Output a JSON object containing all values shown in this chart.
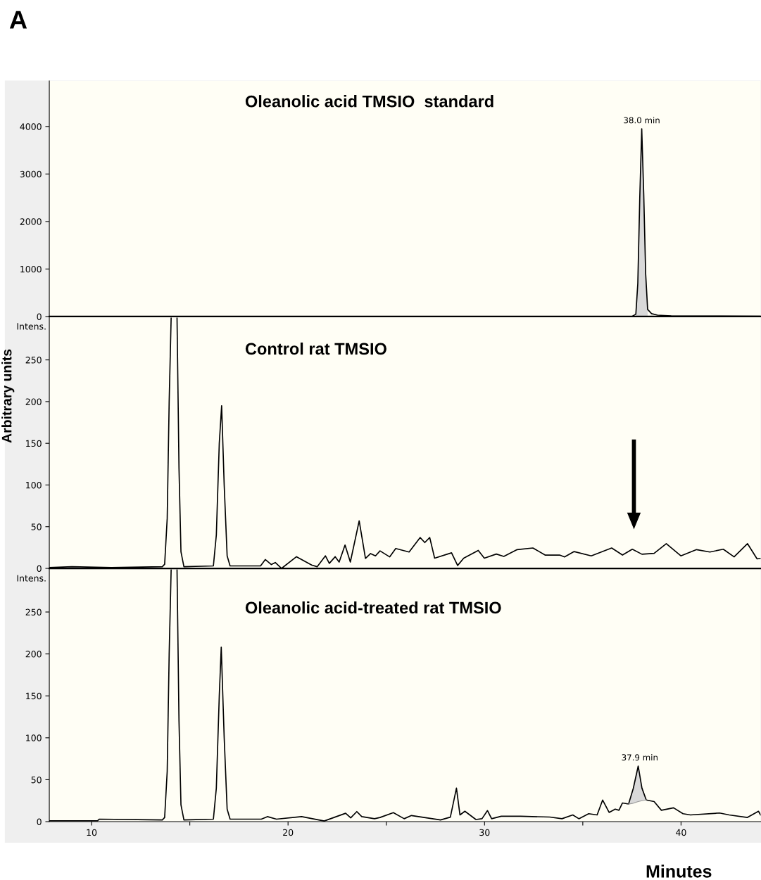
{
  "chart_data": [
    {
      "type": "line",
      "title": "Oleanolic acid TMSIO  standard",
      "annotations": [
        "A",
        {
          "text": "38.0 min",
          "x": 38.0,
          "y": 3950
        }
      ],
      "xlim": [
        7.85,
        44.05
      ],
      "ylim": [
        0,
        4960
      ],
      "yticks": [
        0,
        1000,
        2000,
        3000,
        4000
      ],
      "xticks": [
        10,
        20,
        30,
        40
      ],
      "tick_labels": "y",
      "grid": false,
      "legend": false,
      "series": [
        {
          "color": "#000000",
          "x": [
            7.85,
            20,
            37.5,
            37.7,
            37.8,
            37.9,
            38.0,
            38.1,
            38.2,
            38.3,
            38.5,
            38.8,
            39.5,
            41.0,
            42.0,
            44.05
          ],
          "values": [
            0,
            0,
            0,
            50,
            700,
            2500,
            3950,
            2600,
            900,
            150,
            60,
            30,
            15,
            10,
            10,
            5
          ]
        },
        {
          "type": "area",
          "color": "#d9d9d9",
          "x": [
            37.7,
            37.8,
            37.9,
            38.0,
            38.1,
            38.2,
            38.3
          ],
          "values": [
            50,
            700,
            2500,
            3950,
            2600,
            900,
            150
          ]
        }
      ]
    },
    {
      "type": "line",
      "title": "Control rat TMSIO",
      "ylabel": "Intens.",
      "annotations": [
        "Arbitrary units"
      ],
      "xlim": [
        7.85,
        44.05
      ],
      "ylim": [
        0,
        302
      ],
      "yticks": [
        0,
        50,
        100,
        150,
        200,
        250
      ],
      "xticks": [
        10,
        20,
        30,
        40
      ],
      "tick_labels": "y",
      "grid": false,
      "legend": false,
      "series": [
        {
          "color": "#000000",
          "x": [
            7.85,
            9.0,
            11.0,
            13.6,
            13.72,
            13.85,
            13.95,
            14.05,
            14.2,
            14.35,
            14.45,
            14.55,
            14.7,
            16.2,
            16.35,
            16.5,
            16.62,
            16.75,
            16.9,
            17.05,
            18.6,
            18.84,
            19.15,
            19.35,
            19.67,
            20.43,
            21.2,
            21.48,
            21.9,
            22.1,
            22.4,
            22.6,
            22.9,
            23.17,
            23.62,
            23.94,
            24.2,
            24.45,
            24.68,
            25.17,
            25.48,
            26.16,
            26.72,
            26.96,
            27.21,
            27.46,
            28.32,
            28.63,
            28.94,
            29.68,
            29.99,
            30.6,
            30.98,
            31.66,
            32.46,
            33.08,
            33.82,
            34.07,
            34.56,
            35.43,
            36.47,
            37.02,
            37.52,
            38.01,
            38.63,
            39.25,
            39.99,
            40.79,
            41.47,
            42.15,
            42.7,
            43.38,
            43.87,
            44.05
          ],
          "values": [
            1,
            2,
            1,
            2,
            5,
            60,
            200,
            300,
            null,
            300,
            120,
            20,
            2,
            3,
            40,
            150,
            195,
            100,
            15,
            3,
            3,
            10.6,
            4.6,
            7,
            0,
            14,
            4,
            2,
            15,
            6,
            14,
            7.6,
            28,
            7.6,
            57,
            12,
            17.8,
            15,
            21,
            13.8,
            23.9,
            19.6,
            37,
            31,
            37,
            12.3,
            18.7,
            3.5,
            12.3,
            21.6,
            12.3,
            17.2,
            14.4,
            22.5,
            24.5,
            16,
            16,
            13.8,
            20.2,
            15,
            24.5,
            16,
            23,
            17,
            18,
            29.7,
            15,
            22.5,
            19.6,
            23,
            13.8,
            29.7,
            11.4,
            12
          ]
        }
      ]
    },
    {
      "type": "line",
      "title": "Oleanolic acid-treated rat TMSIO",
      "ylabel": "Intens.",
      "xlabel": "Minutes",
      "annotations": [
        {
          "text": "37.9 min",
          "x": 37.9,
          "y": 66.3
        }
      ],
      "xlim": [
        7.85,
        44.05
      ],
      "ylim": [
        0,
        302
      ],
      "yticks": [
        0,
        50,
        100,
        150,
        200,
        250
      ],
      "xticks": [
        10,
        {
          "value": 15,
          "label": null
        },
        20,
        {
          "value": 25,
          "label": null
        },
        30,
        {
          "value": 35,
          "label": null
        },
        40
      ],
      "grid": false,
      "legend": false,
      "series": [
        {
          "color": "#000000",
          "x": [
            7.85,
            10.3,
            10.4,
            13.6,
            13.72,
            13.85,
            13.95,
            14.05,
            14.2,
            14.35,
            14.45,
            14.55,
            14.7,
            16.2,
            16.35,
            16.5,
            16.6,
            16.75,
            16.9,
            17.05,
            18.3,
            18.64,
            18.95,
            19.41,
            20.69,
            21.84,
            22.93,
            23.19,
            23.5,
            23.75,
            24.4,
            24.68,
            25.36,
            25.91,
            26.28,
            27.76,
            28.26,
            28.57,
            28.75,
            29.0,
            29.56,
            29.87,
            30.15,
            30.36,
            30.85,
            31.84,
            33.32,
            33.94,
            34.49,
            34.8,
            35.3,
            35.73,
            36.01,
            36.34,
            36.65,
            36.84,
            37.02,
            37.33,
            37.57,
            37.82,
            38.01,
            38.23,
            38.63,
            39.0,
            39.62,
            40.1,
            40.48,
            41.96,
            42.45,
            43.38,
            43.94,
            44.05
          ],
          "values": [
            1,
            1,
            3,
            2,
            5,
            60,
            200,
            300,
            null,
            300,
            120,
            20,
            2,
            3,
            40,
            150,
            208,
            100,
            15,
            3,
            3,
            3,
            6,
            3,
            6,
            0.8,
            10,
            4.6,
            12,
            6,
            3.5,
            5,
            10.8,
            3.5,
            7.3,
            2,
            5.4,
            40,
            8,
            12.4,
            2.6,
            3.5,
            13.2,
            3.5,
            6.4,
            6.4,
            5.5,
            3.5,
            8,
            3.5,
            9.5,
            8,
            25.8,
            11,
            15,
            13.6,
            22.3,
            21,
            39.7,
            66.3,
            40,
            25.8,
            24,
            13.6,
            16.5,
            9.5,
            8,
            10.3,
            8,
            5,
            12.4,
            8
          ]
        },
        {
          "type": "area",
          "color": "#d9d9d9",
          "x": [
            37.33,
            37.57,
            37.82,
            38.01,
            38.23
          ],
          "values": [
            21,
            40,
            66,
            40,
            26
          ]
        },
        {
          "type": "line",
          "color": "#999999",
          "x": [
            37.33,
            37.57,
            37.82,
            38.01,
            38.23
          ],
          "values": [
            21,
            22,
            24,
            25,
            26
          ]
        }
      ]
    }
  ]
}
